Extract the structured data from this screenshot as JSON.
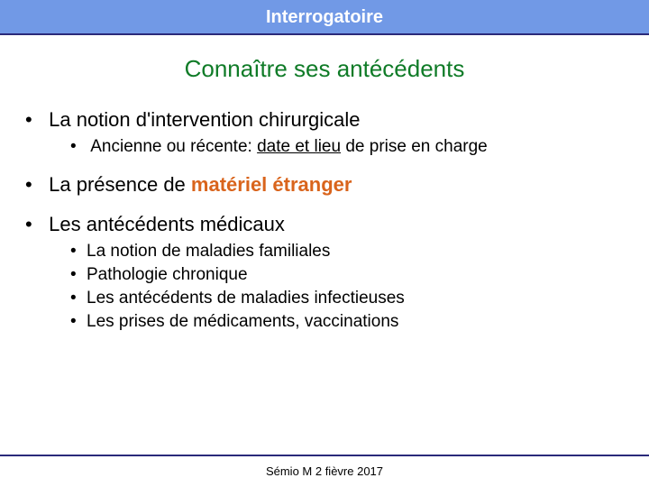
{
  "colors": {
    "header_bg": "#7199e6",
    "header_text": "#ffffff",
    "rule": "#2a2a7a",
    "title": "#0f7b27",
    "body": "#000000",
    "emphasis_orange": "#d9641c"
  },
  "header": {
    "text": "Interrogatoire",
    "fontsize": 20,
    "weight": "bold"
  },
  "title": {
    "text": "Connaître ses antécédents",
    "fontsize": 26
  },
  "body_fontsize": 22,
  "sub_fontsize": 19,
  "bullets": {
    "b1": {
      "text": "La notion d'intervention chirurgicale",
      "sub": {
        "s1_pre": "Ancienne ou récente: ",
        "s1_underline": "date et lieu",
        "s1_post": " de prise en charge"
      }
    },
    "b2": {
      "pre": "La présence de ",
      "emph": "matériel étranger"
    },
    "b3": {
      "text": "Les antécédents médicaux",
      "sub": {
        "s1": "La notion de maladies familiales",
        "s2": "Pathologie chronique",
        "s3": "Les antécédents de maladies infectieuses",
        "s4": "Les prises de médicaments, vaccinations"
      }
    }
  },
  "footer": {
    "text": "Sémio M 2 fièvre 2017",
    "fontsize": 13
  }
}
